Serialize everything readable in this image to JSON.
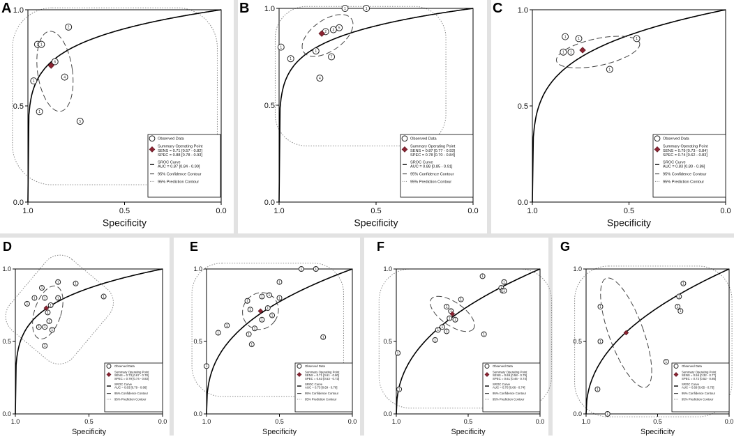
{
  "colors": {
    "summary": "#8b2432",
    "curve": "#000000",
    "confidence": "#444444",
    "prediction": "#888888"
  },
  "chart_data": [
    {
      "panel": "A",
      "type": "scatter",
      "xlabel": "Specificity",
      "ylabel": "",
      "xlim": [
        1.0,
        0.0
      ],
      "ylim": [
        0.0,
        1.0
      ],
      "xticks": [
        "1.0",
        "0.5",
        "0.0"
      ],
      "yticks": [
        "0.0",
        "0.5",
        "1.0"
      ],
      "points": [
        {
          "spec": 0.97,
          "sens": 0.63,
          "label": "1"
        },
        {
          "spec": 0.95,
          "sens": 0.82,
          "label": "1"
        },
        {
          "spec": 0.93,
          "sens": 0.82,
          "label": "1"
        },
        {
          "spec": 0.94,
          "sens": 0.47,
          "label": "1"
        },
        {
          "spec": 0.79,
          "sens": 0.91,
          "label": "2"
        },
        {
          "spec": 0.81,
          "sens": 0.65,
          "label": "4"
        },
        {
          "spec": 0.86,
          "sens": 0.73,
          "label": "6"
        },
        {
          "spec": 0.73,
          "sens": 0.42,
          "label": "5"
        }
      ],
      "summary": {
        "spec": 0.88,
        "sens": 0.71
      },
      "legend": [
        "Observed Data",
        "Summary Operating Point",
        "SENS = 0.71 [0.57 - 0.82]",
        "SPEC = 0.88 [0.78 - 0.93]",
        "SROC Curve",
        "AUC = 0.87 [0.84 - 0.90]",
        "95% Confidence Contour",
        "95% Prediction Contour"
      ]
    },
    {
      "panel": "B",
      "type": "scatter",
      "xlabel": "Specificity",
      "ylabel": "",
      "xlim": [
        1.0,
        0.0
      ],
      "ylim": [
        0.0,
        1.0
      ],
      "xticks": [
        "1.0",
        "0.5",
        "0.0"
      ],
      "yticks": [
        "0.0",
        "0.5",
        "1.0"
      ],
      "points": [
        {
          "spec": 0.99,
          "sens": 0.8,
          "label": "1"
        },
        {
          "spec": 0.94,
          "sens": 0.74,
          "label": "1"
        },
        {
          "spec": 0.81,
          "sens": 0.78,
          "label": "1"
        },
        {
          "spec": 0.79,
          "sens": 0.64,
          "label": "4"
        },
        {
          "spec": 0.73,
          "sens": 0.75,
          "label": "7"
        },
        {
          "spec": 0.76,
          "sens": 0.88,
          "label": "2"
        },
        {
          "spec": 0.72,
          "sens": 0.89,
          "label": "3"
        },
        {
          "spec": 0.69,
          "sens": 0.9,
          "label": "5"
        },
        {
          "spec": 0.66,
          "sens": 1.0,
          "label": "1"
        },
        {
          "spec": 0.55,
          "sens": 1.0,
          "label": "1"
        }
      ],
      "summary": {
        "spec": 0.78,
        "sens": 0.87
      },
      "legend": [
        "Observed Data",
        "Summary Operating Point",
        "SENS = 0.87 [0.77 - 0.93]",
        "SPEC = 0.78 [0.70 - 0.84]",
        "SROC Curve",
        "AUC = 0.88 [0.85 - 0.91]",
        "95% Confidence Contour",
        "95% Prediction Contour"
      ]
    },
    {
      "panel": "C",
      "type": "scatter",
      "xlabel": "Specificity",
      "ylabel": "",
      "xlim": [
        1.0,
        0.0
      ],
      "ylim": [
        0.0,
        1.0
      ],
      "xticks": [
        "1.0",
        "0.5",
        "0.0"
      ],
      "yticks": [
        "0.0",
        "0.5",
        "1.0"
      ],
      "points": [
        {
          "spec": 0.84,
          "sens": 0.78,
          "label": "1"
        },
        {
          "spec": 0.8,
          "sens": 0.78,
          "label": "1"
        },
        {
          "spec": 0.83,
          "sens": 0.86,
          "label": "1"
        },
        {
          "spec": 0.76,
          "sens": 0.85,
          "label": "1"
        },
        {
          "spec": 0.6,
          "sens": 0.69,
          "label": "1"
        },
        {
          "spec": 0.46,
          "sens": 0.85,
          "label": "1"
        }
      ],
      "summary": {
        "spec": 0.74,
        "sens": 0.79
      },
      "legend": [
        "Observed Data",
        "Summary Operating Point",
        "SENS = 0.79 [0.73 - 0.84]",
        "SPEC = 0.74 [0.62 - 0.83]",
        "SROC Curve",
        "AUC = 0.83 [0.80 - 0.86]",
        "95% Confidence Contour",
        "95% Prediction Contour"
      ]
    },
    {
      "panel": "D",
      "type": "scatter",
      "xlabel": "Specificity",
      "ylabel": "",
      "xlim": [
        1.0,
        0.0
      ],
      "ylim": [
        0.0,
        1.0
      ],
      "xticks": [
        "1.0",
        "0.5",
        "0.0"
      ],
      "yticks": [
        "0.0",
        "0.5",
        "1.0"
      ],
      "points": [
        {
          "spec": 0.92,
          "sens": 0.76,
          "label": "1"
        },
        {
          "spec": 0.87,
          "sens": 0.8,
          "label": "1"
        },
        {
          "spec": 0.82,
          "sens": 0.87,
          "label": "1"
        },
        {
          "spec": 0.8,
          "sens": 0.8,
          "label": "1"
        },
        {
          "spec": 0.71,
          "sens": 0.91,
          "label": "1"
        },
        {
          "spec": 0.59,
          "sens": 0.9,
          "label": "1"
        },
        {
          "spec": 0.4,
          "sens": 0.81,
          "label": "1"
        },
        {
          "spec": 0.71,
          "sens": 0.8,
          "label": "1"
        },
        {
          "spec": 0.76,
          "sens": 0.75,
          "label": "1"
        },
        {
          "spec": 0.78,
          "sens": 0.7,
          "label": "1"
        },
        {
          "spec": 0.77,
          "sens": 0.64,
          "label": "1"
        },
        {
          "spec": 0.75,
          "sens": 0.58,
          "label": "1"
        },
        {
          "spec": 0.8,
          "sens": 0.6,
          "label": "1"
        },
        {
          "spec": 0.84,
          "sens": 0.6,
          "label": "1"
        },
        {
          "spec": 0.8,
          "sens": 0.47,
          "label": "1"
        }
      ],
      "summary": {
        "spec": 0.79,
        "sens": 0.73
      },
      "legend": [
        "Observed Data",
        "Summary Operating Point",
        "SENS = 0.73 [0.67 - 0.78]",
        "SPEC = 0.79 [0.74 - 0.83]",
        "SROC Curve",
        "AUC = 0.83 [0.79 - 0.86]",
        "95% Confidence Contour",
        "95% Prediction Contour"
      ]
    },
    {
      "panel": "E",
      "type": "scatter",
      "xlabel": "Specificity",
      "ylabel": "",
      "xlim": [
        1.0,
        0.0
      ],
      "ylim": [
        0.0,
        1.0
      ],
      "xticks": [
        "1.0",
        "0.5",
        "0.0"
      ],
      "yticks": [
        "0.0",
        "0.5",
        "1.0"
      ],
      "points": [
        {
          "spec": 1.0,
          "sens": 0.33,
          "label": "1"
        },
        {
          "spec": 0.92,
          "sens": 0.56,
          "label": "1"
        },
        {
          "spec": 0.86,
          "sens": 0.61,
          "label": "1"
        },
        {
          "spec": 0.72,
          "sens": 0.78,
          "label": "1"
        },
        {
          "spec": 0.7,
          "sens": 0.72,
          "label": "1"
        },
        {
          "spec": 0.62,
          "sens": 0.81,
          "label": "1"
        },
        {
          "spec": 0.57,
          "sens": 0.82,
          "label": "1"
        },
        {
          "spec": 0.5,
          "sens": 0.91,
          "label": "1"
        },
        {
          "spec": 0.35,
          "sens": 1.0,
          "label": "1"
        },
        {
          "spec": 0.25,
          "sens": 1.0,
          "label": "1"
        },
        {
          "spec": 0.58,
          "sens": 0.73,
          "label": "1"
        },
        {
          "spec": 0.62,
          "sens": 0.65,
          "label": "1"
        },
        {
          "spec": 0.55,
          "sens": 0.68,
          "label": "1"
        },
        {
          "spec": 0.67,
          "sens": 0.59,
          "label": "1"
        },
        {
          "spec": 0.71,
          "sens": 0.55,
          "label": "1"
        },
        {
          "spec": 0.69,
          "sens": 0.48,
          "label": "1"
        },
        {
          "spec": 0.5,
          "sens": 0.8,
          "label": "1"
        },
        {
          "spec": 0.2,
          "sens": 0.53,
          "label": "1"
        }
      ],
      "summary": {
        "spec": 0.63,
        "sens": 0.71
      },
      "legend": [
        "Observed Data",
        "Summary Operating Point",
        "SENS = 0.71 [0.61 - 0.80]",
        "SPEC = 0.63 [0.53 - 0.73]",
        "SROC Curve",
        "AUC = 0.73 [0.69 - 0.76]",
        "95% Confidence Contour",
        "95% Prediction Contour"
      ]
    },
    {
      "panel": "F",
      "type": "scatter",
      "xlabel": "Specificity",
      "ylabel": "",
      "xlim": [
        1.0,
        0.0
      ],
      "ylim": [
        0.0,
        1.0
      ],
      "xticks": [
        "1.0",
        "0.5",
        "0.0"
      ],
      "yticks": [
        "0.0",
        "0.5",
        "1.0"
      ],
      "points": [
        {
          "spec": 0.99,
          "sens": 0.42,
          "label": "1"
        },
        {
          "spec": 0.98,
          "sens": 0.17,
          "label": "1"
        },
        {
          "spec": 0.73,
          "sens": 0.51,
          "label": "1"
        },
        {
          "spec": 0.71,
          "sens": 0.58,
          "label": "1"
        },
        {
          "spec": 0.68,
          "sens": 0.6,
          "label": "1"
        },
        {
          "spec": 0.65,
          "sens": 0.57,
          "label": "1"
        },
        {
          "spec": 0.63,
          "sens": 0.66,
          "label": "1"
        },
        {
          "spec": 0.62,
          "sens": 0.71,
          "label": "1"
        },
        {
          "spec": 0.65,
          "sens": 0.74,
          "label": "1"
        },
        {
          "spec": 0.59,
          "sens": 0.65,
          "label": "1"
        },
        {
          "spec": 0.55,
          "sens": 0.79,
          "label": "1"
        },
        {
          "spec": 0.4,
          "sens": 0.95,
          "label": "1"
        },
        {
          "spec": 0.39,
          "sens": 0.55,
          "label": "1"
        },
        {
          "spec": 0.27,
          "sens": 0.87,
          "label": "1"
        },
        {
          "spec": 0.26,
          "sens": 0.85,
          "label": "1"
        },
        {
          "spec": 0.25,
          "sens": 0.85,
          "label": "1"
        },
        {
          "spec": 0.25,
          "sens": 0.91,
          "label": "1"
        }
      ],
      "summary": {
        "spec": 0.61,
        "sens": 0.69
      },
      "legend": [
        "Observed Data",
        "Summary Operating Point",
        "SENS = 0.69 [0.58 - 0.79]",
        "SPEC = 0.61 [0.46 - 0.74]",
        "SROC Curve",
        "AUC = 0.70 [0.66 - 0.74]",
        "95% Confidence Contour",
        "95% Prediction Contour"
      ]
    },
    {
      "panel": "G",
      "type": "scatter",
      "xlabel": "Specificity",
      "ylabel": "",
      "xlim": [
        1.0,
        0.0
      ],
      "ylim": [
        0.0,
        1.0
      ],
      "xticks": [
        "1.0",
        "0.5",
        "0.0"
      ],
      "yticks": [
        "0.0",
        "0.5",
        "1.0"
      ],
      "points": [
        {
          "spec": 0.9,
          "sens": 0.74,
          "label": "1"
        },
        {
          "spec": 0.9,
          "sens": 0.5,
          "label": "1"
        },
        {
          "spec": 0.92,
          "sens": 0.17,
          "label": "1"
        },
        {
          "spec": 0.85,
          "sens": 0.0,
          "label": "1"
        },
        {
          "spec": 0.44,
          "sens": 0.36,
          "label": "1"
        },
        {
          "spec": 0.36,
          "sens": 0.74,
          "label": "1"
        },
        {
          "spec": 0.34,
          "sens": 0.71,
          "label": "1"
        },
        {
          "spec": 0.35,
          "sens": 0.81,
          "label": "1"
        },
        {
          "spec": 0.32,
          "sens": 0.9,
          "label": "1"
        }
      ],
      "summary": {
        "spec": 0.72,
        "sens": 0.56
      },
      "legend": [
        "Observed Data",
        "Summary Operating Point",
        "SENS = 0.56 [0.32 - 0.77]",
        "SPEC = 0.72 [0.52 - 0.85]",
        "SROC Curve",
        "AUC = 0.69 [0.65 - 0.73]",
        "95% Confidence Contour",
        "95% Prediction Contour"
      ]
    }
  ]
}
